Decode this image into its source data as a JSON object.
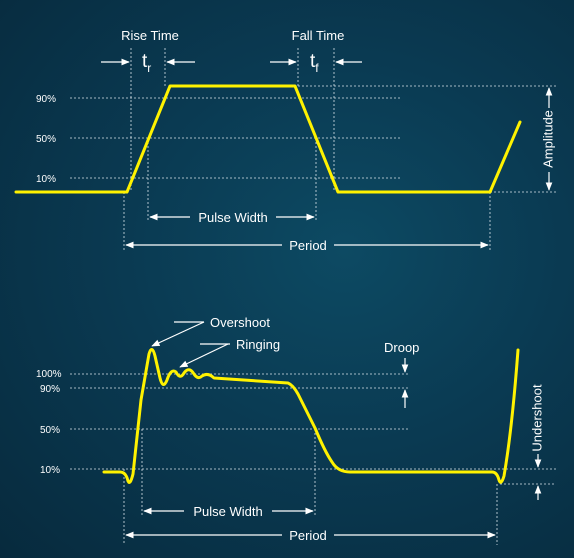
{
  "top": {
    "rise_time": "Rise Time",
    "fall_time": "Fall Time",
    "tr_main": "t",
    "tr_sub": "r",
    "tf_main": "t",
    "tf_sub": "f",
    "level_90": "90%",
    "level_50": "50%",
    "level_10": "10%",
    "amplitude": "Amplitude",
    "pulse_width": "Pulse Width",
    "period": "Period"
  },
  "bottom": {
    "overshoot": "Overshoot",
    "ringing": "Ringing",
    "droop": "Droop",
    "level_100": "100%",
    "level_90": "90%",
    "level_50": "50%",
    "level_10": "10%",
    "undershoot": "Undershoot",
    "pulse_width": "Pulse Width",
    "period": "Period"
  },
  "colors": {
    "waveform": "#fff200",
    "text": "#ffffff",
    "background": "#0a3a52"
  }
}
